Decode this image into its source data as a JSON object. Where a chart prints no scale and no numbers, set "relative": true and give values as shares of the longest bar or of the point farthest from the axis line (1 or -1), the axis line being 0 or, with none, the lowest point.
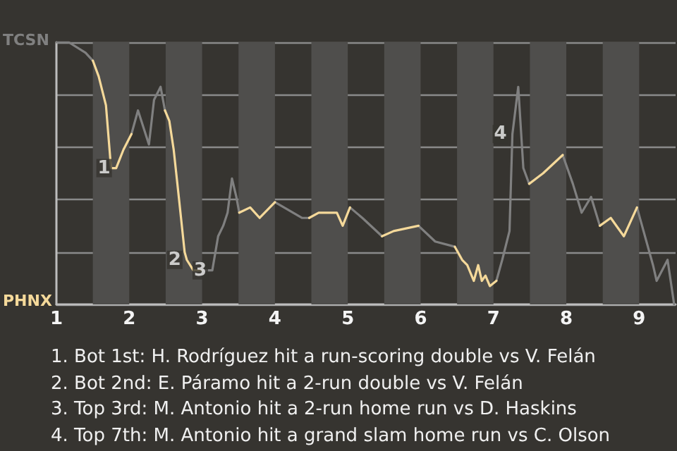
{
  "chart_data": {
    "type": "line",
    "relative": true,
    "x": [
      1.0,
      1.17,
      1.4,
      1.5,
      1.58,
      1.68,
      1.75,
      1.82,
      1.92,
      2.03,
      2.12,
      2.27,
      2.34,
      2.43,
      2.49,
      2.55,
      2.61,
      2.68,
      2.76,
      2.79,
      2.88,
      2.94,
      2.99,
      3.07,
      3.14,
      3.22,
      3.29,
      3.35,
      3.41,
      3.47,
      3.51,
      3.66,
      3.79,
      4.0,
      4.37,
      4.47,
      4.6,
      4.72,
      4.85,
      4.93,
      5.03,
      5.2,
      5.47,
      5.63,
      5.97,
      6.2,
      6.47,
      6.57,
      6.64,
      6.73,
      6.79,
      6.84,
      6.89,
      6.95,
      7.04,
      7.12,
      7.22,
      7.26,
      7.34,
      7.41,
      7.49,
      7.68,
      7.95,
      8.09,
      8.21,
      8.34,
      8.46,
      8.61,
      8.79,
      8.97,
      9.19,
      9.24,
      9.39,
      9.48
    ],
    "series": [
      {
        "color": "#808080",
        "values": [
          1,
          1,
          0.96,
          0.93,
          null,
          null,
          null,
          null,
          null,
          0.65,
          0.74,
          0.61,
          0.78,
          0.83,
          0.74,
          null,
          null,
          null,
          null,
          null,
          null,
          null,
          0.13,
          0.13,
          0.13,
          0.26,
          0.3,
          0.35,
          0.48,
          0.41,
          0.35,
          null,
          null,
          0.39,
          0.33,
          0.33,
          null,
          null,
          null,
          null,
          0.37,
          0.33,
          0.26,
          null,
          0.3,
          0.24,
          0.22,
          null,
          null,
          null,
          null,
          null,
          null,
          null,
          0.09,
          0.17,
          0.28,
          0.65,
          0.83,
          0.52,
          0.46,
          null,
          0.57,
          0.46,
          0.35,
          0.41,
          0.3,
          null,
          null,
          0.37,
          0.15,
          0.09,
          0.17,
          0
        ]
      },
      {
        "color": "#f5d99a",
        "values": [
          null,
          null,
          null,
          0.93,
          0.87,
          0.76,
          0.52,
          0.52,
          0.59,
          0.65,
          null,
          null,
          null,
          null,
          0.74,
          0.7,
          0.59,
          0.41,
          0.2,
          0.17,
          0.13,
          0.13,
          0.13,
          null,
          null,
          null,
          null,
          null,
          null,
          null,
          0.35,
          0.37,
          0.33,
          0.39,
          null,
          0.33,
          0.35,
          0.35,
          0.35,
          0.3,
          0.37,
          null,
          0.26,
          0.28,
          0.3,
          null,
          0.22,
          0.17,
          0.15,
          0.09,
          0.15,
          0.09,
          0.11,
          0.07,
          0.09,
          null,
          null,
          null,
          null,
          null,
          0.46,
          0.5,
          0.57,
          null,
          null,
          null,
          0.3,
          0.33,
          0.26,
          0.37,
          null,
          null,
          null,
          null
        ]
      }
    ],
    "xlim": [
      1,
      9.5
    ],
    "xticks": [
      1,
      2,
      3,
      4,
      5,
      6,
      7,
      8,
      9
    ],
    "grid": "y",
    "marker": "none",
    "line_style": "solid",
    "bands": [
      {
        "axis": "x",
        "from": 1.5,
        "to": 2,
        "color": "#4f4e4c"
      },
      {
        "axis": "x",
        "from": 2.5,
        "to": 3,
        "color": "#4f4e4c"
      },
      {
        "axis": "x",
        "from": 3.5,
        "to": 4,
        "color": "#4f4e4c"
      },
      {
        "axis": "x",
        "from": 4.5,
        "to": 5,
        "color": "#4f4e4c"
      },
      {
        "axis": "x",
        "from": 5.5,
        "to": 6,
        "color": "#4f4e4c"
      },
      {
        "axis": "x",
        "from": 6.5,
        "to": 7,
        "color": "#4f4e4c"
      },
      {
        "axis": "x",
        "from": 7.5,
        "to": 8,
        "color": "#4f4e4c"
      },
      {
        "axis": "x",
        "from": 8.5,
        "to": 9,
        "color": "#4f4e4c"
      }
    ],
    "annotations": [
      "TCSN",
      "PHNX",
      {
        "text": "1",
        "x": 1.82,
        "y": 0.52
      },
      {
        "text": "2",
        "x": 2.79,
        "y": 0.17
      },
      {
        "text": "3",
        "x": 3.14,
        "y": 0.13
      },
      {
        "text": "4",
        "x": 7.26,
        "y": 0.65
      },
      "1. Bot 1st: H. Rodríguez hit a run-scoring double vs V. Felán",
      "2. Bot 2nd: E. Páramo hit a 2-run double vs V. Felán",
      "3. Top 3rd: M. Antonio hit a 2-run home run vs D. Haskins",
      "4. Top 7th: M. Antonio hit a grand slam home run vs C. Olson"
    ]
  }
}
